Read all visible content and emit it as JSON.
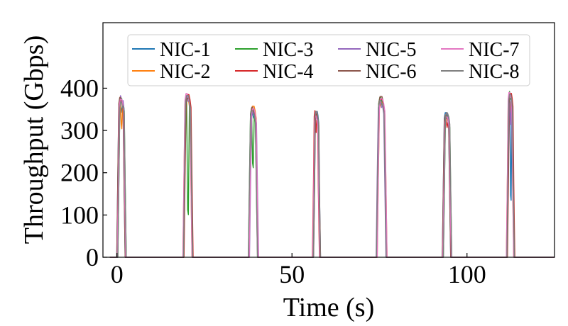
{
  "chart_data": {
    "type": "line",
    "title": "",
    "xlabel": "Time (s)",
    "ylabel": "Throughput (Gbps)",
    "xlim": [
      -4,
      125
    ],
    "ylim": [
      0,
      555
    ],
    "xticks": [
      0,
      50,
      100
    ],
    "yticks": [
      0,
      100,
      200,
      300,
      400
    ],
    "grid": false,
    "legend_position": "top",
    "legend_columns": 4,
    "bursts": [
      {
        "start": 0.4,
        "end": 2.2,
        "peak": 380
      },
      {
        "start": 19.3,
        "end": 21.3,
        "peak": 385
      },
      {
        "start": 38.0,
        "end": 40.0,
        "peak": 355
      },
      {
        "start": 56.3,
        "end": 57.7,
        "peak": 345
      },
      {
        "start": 74.5,
        "end": 76.7,
        "peak": 378
      },
      {
        "start": 93.4,
        "end": 95.2,
        "peak": 340
      },
      {
        "start": 111.7,
        "end": 113.2,
        "peak": 390
      }
    ],
    "series": [
      {
        "name": "NIC-1",
        "color": "#1f77b4",
        "dips": [
          0.93,
          1.0,
          0.95,
          1.0,
          0.97,
          1.0,
          0.35
        ]
      },
      {
        "name": "NIC-2",
        "color": "#ff7f0e",
        "dips": [
          0.8,
          0.98,
          1.0,
          0.97,
          1.0,
          0.96,
          0.9
        ]
      },
      {
        "name": "NIC-3",
        "color": "#2ca02c",
        "dips": [
          0.97,
          0.27,
          0.6,
          1.0,
          0.98,
          1.0,
          0.95
        ]
      },
      {
        "name": "NIC-4",
        "color": "#d62728",
        "dips": [
          1.0,
          1.0,
          0.98,
          0.85,
          1.0,
          0.93,
          1.0
        ]
      },
      {
        "name": "NIC-5",
        "color": "#9467bd",
        "dips": [
          0.95,
          0.97,
          1.0,
          1.0,
          0.96,
          1.0,
          0.82
        ]
      },
      {
        "name": "NIC-6",
        "color": "#8c564b",
        "dips": [
          0.98,
          1.0,
          0.97,
          0.99,
          1.0,
          0.98,
          1.0
        ]
      },
      {
        "name": "NIC-7",
        "color": "#e377c2",
        "dips": [
          1.0,
          0.99,
          1.0,
          0.98,
          0.99,
          1.0,
          0.97
        ]
      },
      {
        "name": "NIC-8",
        "color": "#7f7f7f",
        "dips": [
          0.96,
          1.0,
          0.99,
          1.0,
          0.97,
          0.99,
          1.0
        ]
      }
    ]
  }
}
